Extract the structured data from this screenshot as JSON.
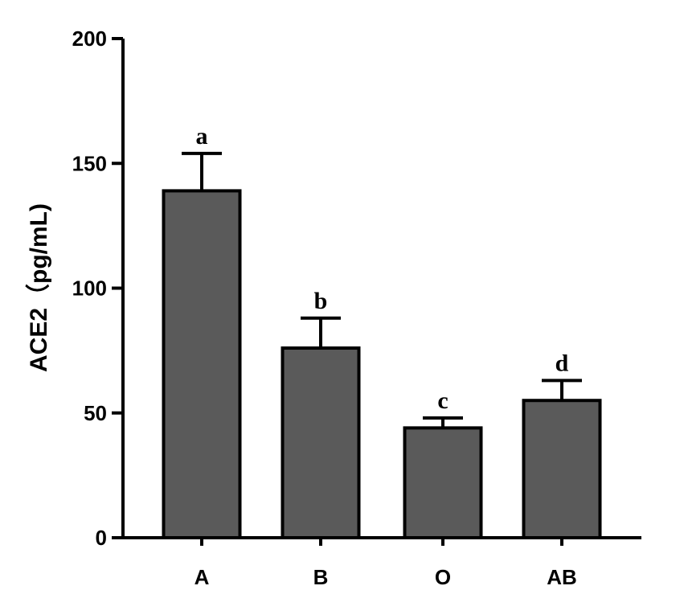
{
  "chart_data": {
    "type": "bar",
    "title": "",
    "xlabel": "",
    "ylabel": "ACE2（pg/mL)",
    "ylim": [
      0,
      200
    ],
    "yticks": [
      0,
      50,
      100,
      150,
      200
    ],
    "grid": false,
    "categories": [
      "A",
      "B",
      "O",
      "AB"
    ],
    "values": [
      139,
      76,
      44,
      55
    ],
    "errors": [
      15,
      12,
      4,
      8
    ],
    "significance_labels": [
      "a",
      "b",
      "c",
      "d"
    ],
    "bar_color": "#5a5a5a",
    "edge_color": "#000000"
  }
}
